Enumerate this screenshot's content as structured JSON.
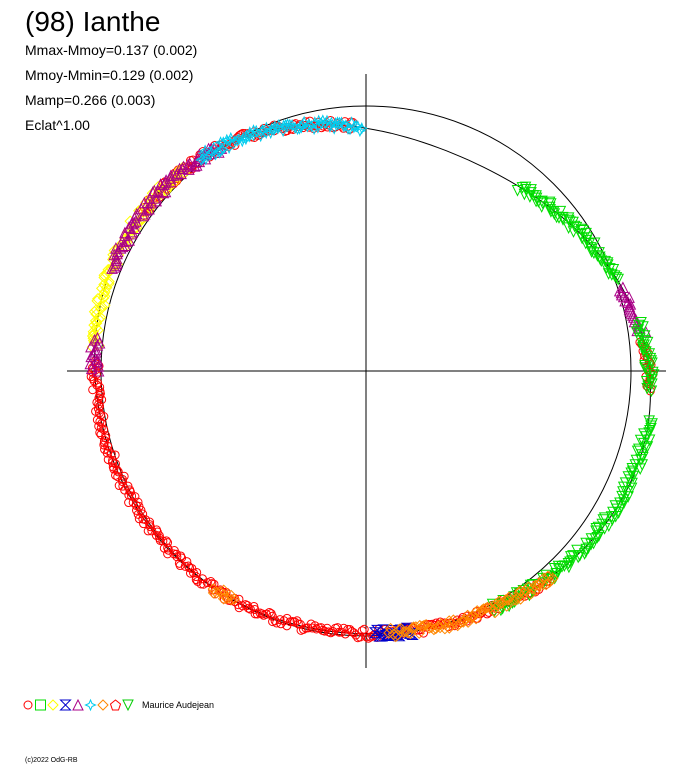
{
  "title": "(98) Ianthe",
  "stats": [
    "Mmax-Mmoy=0.137 (0.002)",
    "Mmoy-Mmin=0.129 (0.002)",
    "Mamp=0.266 (0.003)",
    "Eclat^1.00"
  ],
  "legend": {
    "author": "Maurice Audejean",
    "symbols": [
      {
        "icon": "circle-icon",
        "color": "#ff0000"
      },
      {
        "icon": "square-icon",
        "color": "#00dd00"
      },
      {
        "icon": "diamond-icon",
        "color": "#ffff00"
      },
      {
        "icon": "hourglass-icon",
        "color": "#0000cc"
      },
      {
        "icon": "triangle-icon",
        "color": "#aa0088"
      },
      {
        "icon": "star-icon",
        "color": "#00ccee"
      },
      {
        "icon": "cross-diamond-icon",
        "color": "#ff8800"
      },
      {
        "icon": "pentagon-icon",
        "color": "#ff0000"
      },
      {
        "icon": "triangle-down-icon",
        "color": "#00cc00"
      }
    ]
  },
  "copyright": "(c)2022 OdG-RB",
  "chart_data": {
    "type": "scatter",
    "projection": "polar lightcurve",
    "title": "(98) Ianthe",
    "reference_circle": true,
    "axes": "cross through center",
    "series": [
      {
        "color": "#ff0000",
        "marker": "circle",
        "arcs_deg": [
          [
            -4,
            6
          ],
          [
            93,
            145
          ],
          [
            178,
            312
          ]
        ]
      },
      {
        "color": "#ffff00",
        "marker": "diamond",
        "arcs_deg": [
          [
            132,
            175
          ]
        ]
      },
      {
        "color": "#aa0088",
        "marker": "triangle",
        "arcs_deg": [
          [
            8,
            18
          ],
          [
            123,
            158
          ],
          [
            173,
            180
          ]
        ]
      },
      {
        "color": "#00ccee",
        "marker": "star",
        "arcs_deg": [
          [
            91,
            128
          ]
        ]
      },
      {
        "color": "#00dd00",
        "marker": "square/triangle-down",
        "arcs_deg": [
          [
            20,
            50
          ],
          [
            -4,
            10
          ],
          [
            -10,
            -50
          ],
          [
            -52,
            -62
          ]
        ]
      },
      {
        "color": "#0000cc",
        "marker": "hourglass",
        "arcs_deg": [
          [
            -80,
            -88
          ]
        ]
      },
      {
        "color": "#ff8800",
        "marker": "cross-diamond",
        "arcs_deg": [
          [
            -48,
            -85
          ],
          [
            -120,
            -125
          ]
        ]
      }
    ]
  }
}
